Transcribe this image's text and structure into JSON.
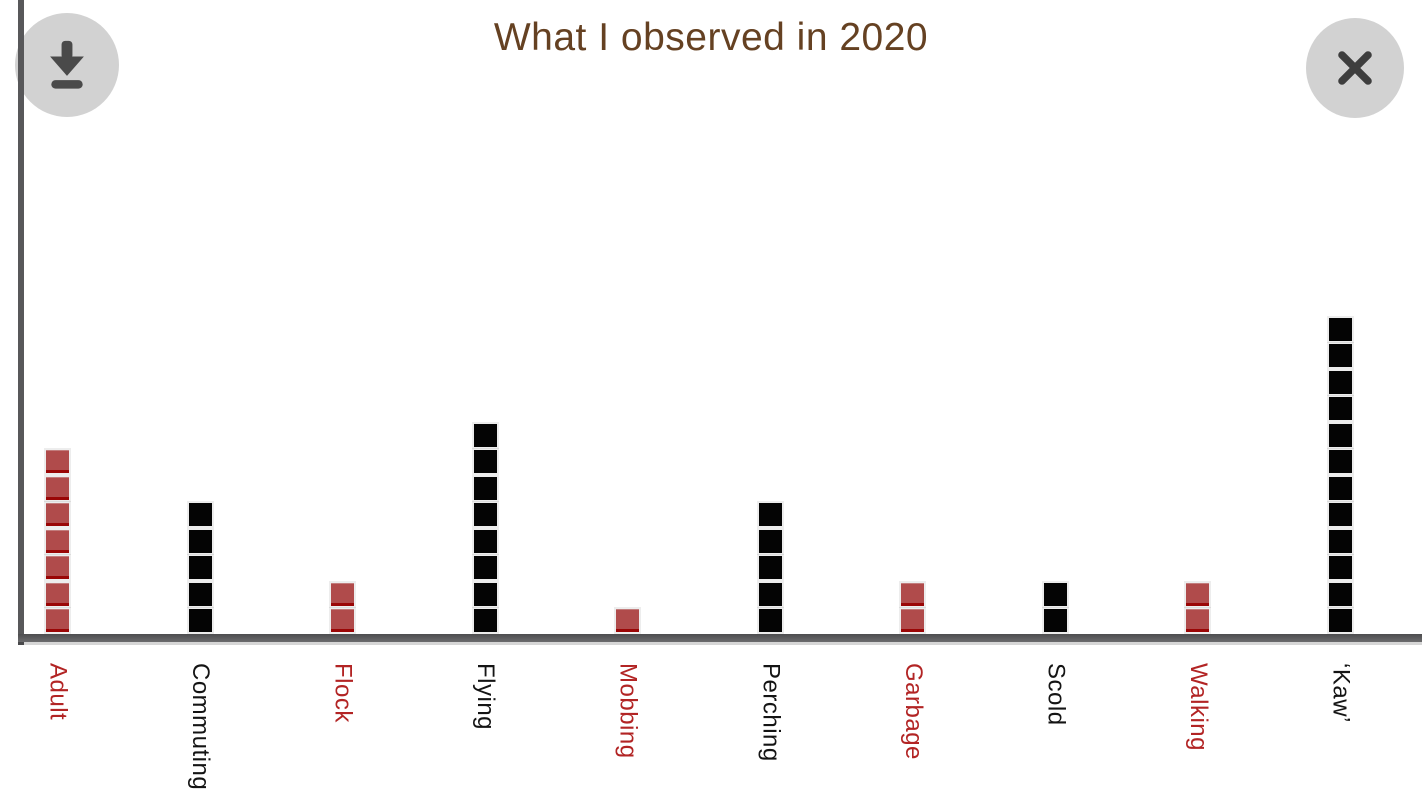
{
  "title": "What I observed in 2020",
  "toolbar": {
    "download_label": "Download",
    "close_label": "Close"
  },
  "colors": {
    "title_text": "#654122",
    "red_square_fill": "#b04b4b",
    "red_square_bottom_edge": "#9a0606",
    "black_square_fill": "#040404",
    "red_label_text": "#b22424",
    "black_label_text": "#141414",
    "axis_line": "#58585a",
    "button_background": "#d2d2d2",
    "button_icon": "#4a4a4a"
  },
  "chart_data": {
    "type": "bar",
    "subtype": "pictograph-stacked-squares",
    "title": "What I observed in 2020",
    "xlabel": "",
    "ylabel": "",
    "grid": false,
    "legend": false,
    "ylim": [
      0,
      12
    ],
    "categories": [
      "Adult",
      "Commuting",
      "Flock",
      "Flying",
      "Mobbing",
      "Perching",
      "Garbage",
      "Scold",
      "Walking",
      "‘Kaw’"
    ],
    "values": [
      7,
      5,
      2,
      8,
      1,
      5,
      2,
      2,
      2,
      12
    ],
    "colors": [
      "red",
      "black",
      "red",
      "black",
      "red",
      "black",
      "red",
      "black",
      "red",
      "black"
    ],
    "bars": [
      {
        "label": "Adult",
        "value": 7,
        "color": "red"
      },
      {
        "label": "Commuting",
        "value": 5,
        "color": "black"
      },
      {
        "label": "Flock",
        "value": 2,
        "color": "red"
      },
      {
        "label": "Flying",
        "value": 8,
        "color": "black"
      },
      {
        "label": "Mobbing",
        "value": 1,
        "color": "red"
      },
      {
        "label": "Perching",
        "value": 5,
        "color": "black"
      },
      {
        "label": "Garbage",
        "value": 2,
        "color": "red"
      },
      {
        "label": "Scold",
        "value": 2,
        "color": "black"
      },
      {
        "label": "Walking",
        "value": 2,
        "color": "red"
      },
      {
        "label": "‘Kaw’",
        "value": 12,
        "color": "black"
      }
    ]
  }
}
